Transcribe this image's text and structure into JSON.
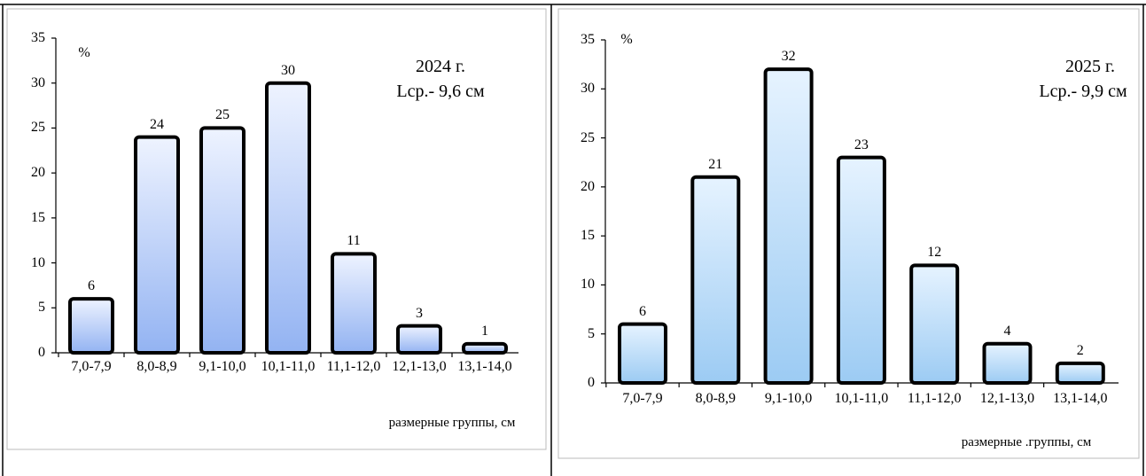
{
  "chart_data": [
    {
      "type": "bar",
      "year": "2024 г.",
      "annotation": "Lср.- 9,6 см",
      "ylabel": "%",
      "xlabel": "размерные группы, см",
      "categories": [
        "7,0-7,9",
        "8,0-8,9",
        "9,1-10,0",
        "10,1-11,0",
        "11,1-12,0",
        "12,1-13,0",
        "13,1-14,0"
      ],
      "values": [
        6,
        24,
        25,
        30,
        11,
        3,
        1
      ],
      "color_top": "#eef3ff",
      "color_bottom": "#93b3f2",
      "ylim": [
        0,
        35
      ],
      "yticks": [
        0,
        5,
        10,
        15,
        20,
        25,
        30,
        35
      ]
    },
    {
      "type": "bar",
      "year": "2025 г.",
      "annotation": "Lср.- 9,9 см",
      "ylabel": "%",
      "xlabel": "размерные .группы, см",
      "categories": [
        "7,0-7,9",
        "8,0-8,9",
        "9,1-10,0",
        "10,1-11,0",
        "11,1-12,0",
        "12,1-13,0",
        "13,1-14,0"
      ],
      "values": [
        6,
        21,
        32,
        23,
        12,
        4,
        2
      ],
      "color_top": "#e6f3ff",
      "color_bottom": "#9ccbf3",
      "ylim": [
        0,
        35
      ],
      "yticks": [
        0,
        5,
        10,
        15,
        20,
        25,
        30,
        35
      ]
    }
  ]
}
